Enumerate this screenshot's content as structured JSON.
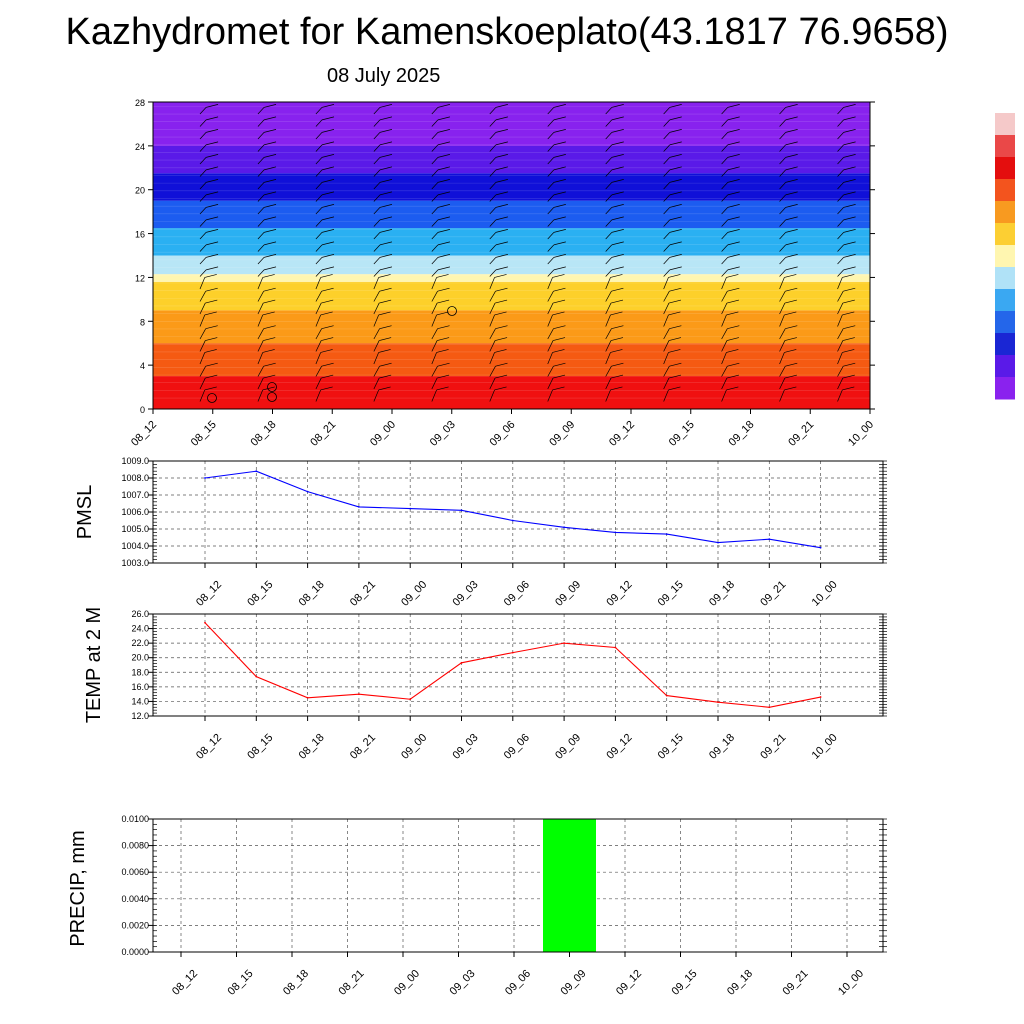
{
  "header": {
    "title": "Kazhydromet for Kamenskoeplato(43.1817 76.9658)",
    "subtitle": "08 July 2025"
  },
  "chart_data": [
    {
      "type": "heatmap",
      "title": "",
      "y_ticks": [
        "0",
        "4",
        "8",
        "12",
        "16",
        "20",
        "24",
        "28"
      ],
      "ylim": [
        0,
        28
      ],
      "x": [
        "08_12",
        "08_15",
        "08_18",
        "08_21",
        "09_00",
        "09_03",
        "09_06",
        "09_09",
        "09_12",
        "09_15",
        "09_18",
        "09_21",
        "10_00"
      ],
      "color_bands": [
        {
          "from": 0,
          "to": 3,
          "color": "#f01010"
        },
        {
          "from": 3,
          "to": 6,
          "color": "#f55a12"
        },
        {
          "from": 6,
          "to": 9,
          "color": "#fb9a18"
        },
        {
          "from": 9,
          "to": 11.6,
          "color": "#fdd02a"
        },
        {
          "from": 11.6,
          "to": 12.3,
          "color": "#fff6b0"
        },
        {
          "from": 12.3,
          "to": 14,
          "color": "#b8e6f6"
        },
        {
          "from": 14,
          "to": 16.5,
          "color": "#2ab0f2"
        },
        {
          "from": 16.5,
          "to": 19,
          "color": "#1c5cf0"
        },
        {
          "from": 19,
          "to": 21.5,
          "color": "#1010d8"
        },
        {
          "from": 21.5,
          "to": 24,
          "color": "#5a1ae8"
        },
        {
          "from": 24,
          "to": 28,
          "color": "#8822ee"
        }
      ],
      "colorbar": [
        "#f5c9c9",
        "#ea4848",
        "#e40e0e",
        "#f3541e",
        "#f89a20",
        "#fccf33",
        "#fff6b0",
        "#b0e2f7",
        "#3aa8f2",
        "#2466ea",
        "#1a26d4",
        "#5a1ae8",
        "#8a22ee"
      ]
    },
    {
      "type": "line",
      "ylabel": "PMSL",
      "ylim": [
        1003.0,
        1009.0
      ],
      "y_ticks": [
        "1003.0",
        "1004.0",
        "1005.0",
        "1006.0",
        "1007.0",
        "1008.0",
        "1009.0"
      ],
      "x": [
        "08_12",
        "08_15",
        "08_18",
        "08_21",
        "09_00",
        "09_03",
        "09_06",
        "09_09",
        "09_12",
        "09_15",
        "09_18",
        "09_21",
        "10_00"
      ],
      "series": [
        {
          "color": "#0000ff",
          "values": [
            1008.0,
            1008.4,
            1007.2,
            1006.3,
            1006.2,
            1006.1,
            1005.5,
            1005.1,
            1004.8,
            1004.7,
            1004.2,
            1004.4,
            1003.9
          ]
        }
      ]
    },
    {
      "type": "line",
      "ylabel": "TEMP at 2 M",
      "ylim": [
        12.0,
        26.0
      ],
      "y_ticks": [
        "12.0",
        "14.0",
        "16.0",
        "18.0",
        "20.0",
        "22.0",
        "24.0",
        "26.0"
      ],
      "x": [
        "08_12",
        "08_15",
        "08_18",
        "08_21",
        "09_00",
        "09_03",
        "09_06",
        "09_09",
        "09_12",
        "09_15",
        "09_18",
        "09_21",
        "10_00"
      ],
      "series": [
        {
          "color": "#ff0000",
          "values": [
            24.8,
            17.4,
            14.5,
            15.0,
            14.3,
            19.3,
            20.7,
            22.0,
            21.4,
            14.8,
            13.9,
            13.2,
            14.6
          ]
        }
      ]
    },
    {
      "type": "bar",
      "ylabel": "PRECIP, mm",
      "ylim": [
        0,
        0.01
      ],
      "y_ticks": [
        "0.0000",
        "0.0020",
        "0.0040",
        "0.0060",
        "0.0080",
        "0.0100"
      ],
      "categories": [
        "08_12",
        "08_15",
        "08_18",
        "08_21",
        "09_00",
        "09_03",
        "09_06",
        "09_09",
        "09_12",
        "09_15",
        "09_18",
        "09_21",
        "10_00"
      ],
      "values": [
        0,
        0,
        0,
        0,
        0,
        0,
        0,
        0.01,
        0,
        0,
        0,
        0,
        0
      ],
      "bar_color": "#00ff00"
    }
  ]
}
